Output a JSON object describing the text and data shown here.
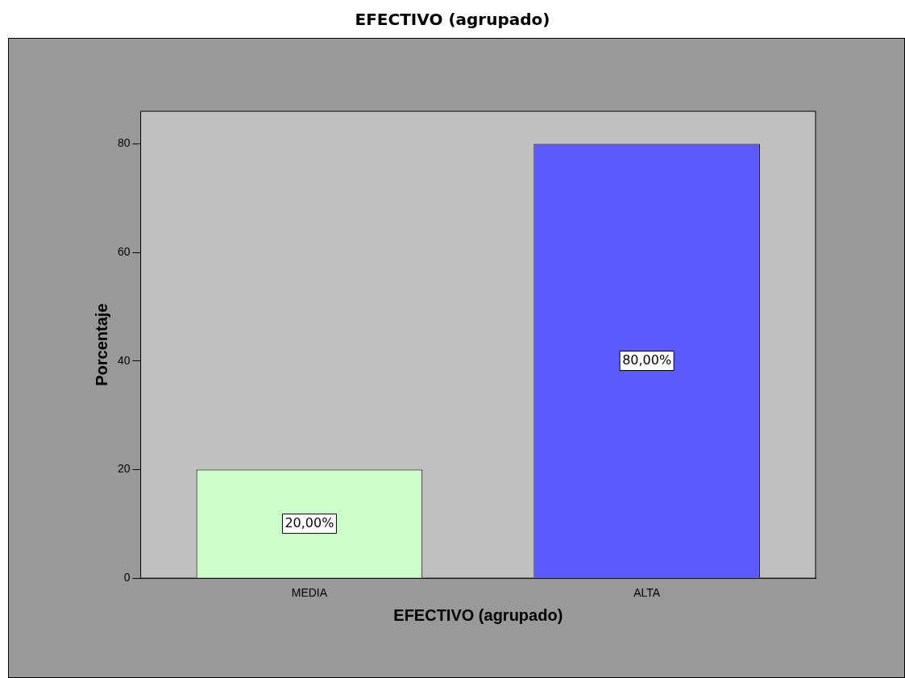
{
  "chart_data": {
    "type": "bar",
    "title": "EFECTIVO (agrupado)",
    "xlabel": "EFECTIVO (agrupado)",
    "ylabel": "Porcentaje",
    "categories": [
      "MEDIA",
      "ALTA"
    ],
    "values": [
      20,
      80
    ],
    "colors": [
      "#ccffcc",
      "#5a5aff"
    ],
    "value_labels": [
      "20,00%",
      "80,00%"
    ],
    "ylim": [
      0,
      86
    ],
    "yticks": [
      0,
      20,
      40,
      60,
      80
    ]
  }
}
